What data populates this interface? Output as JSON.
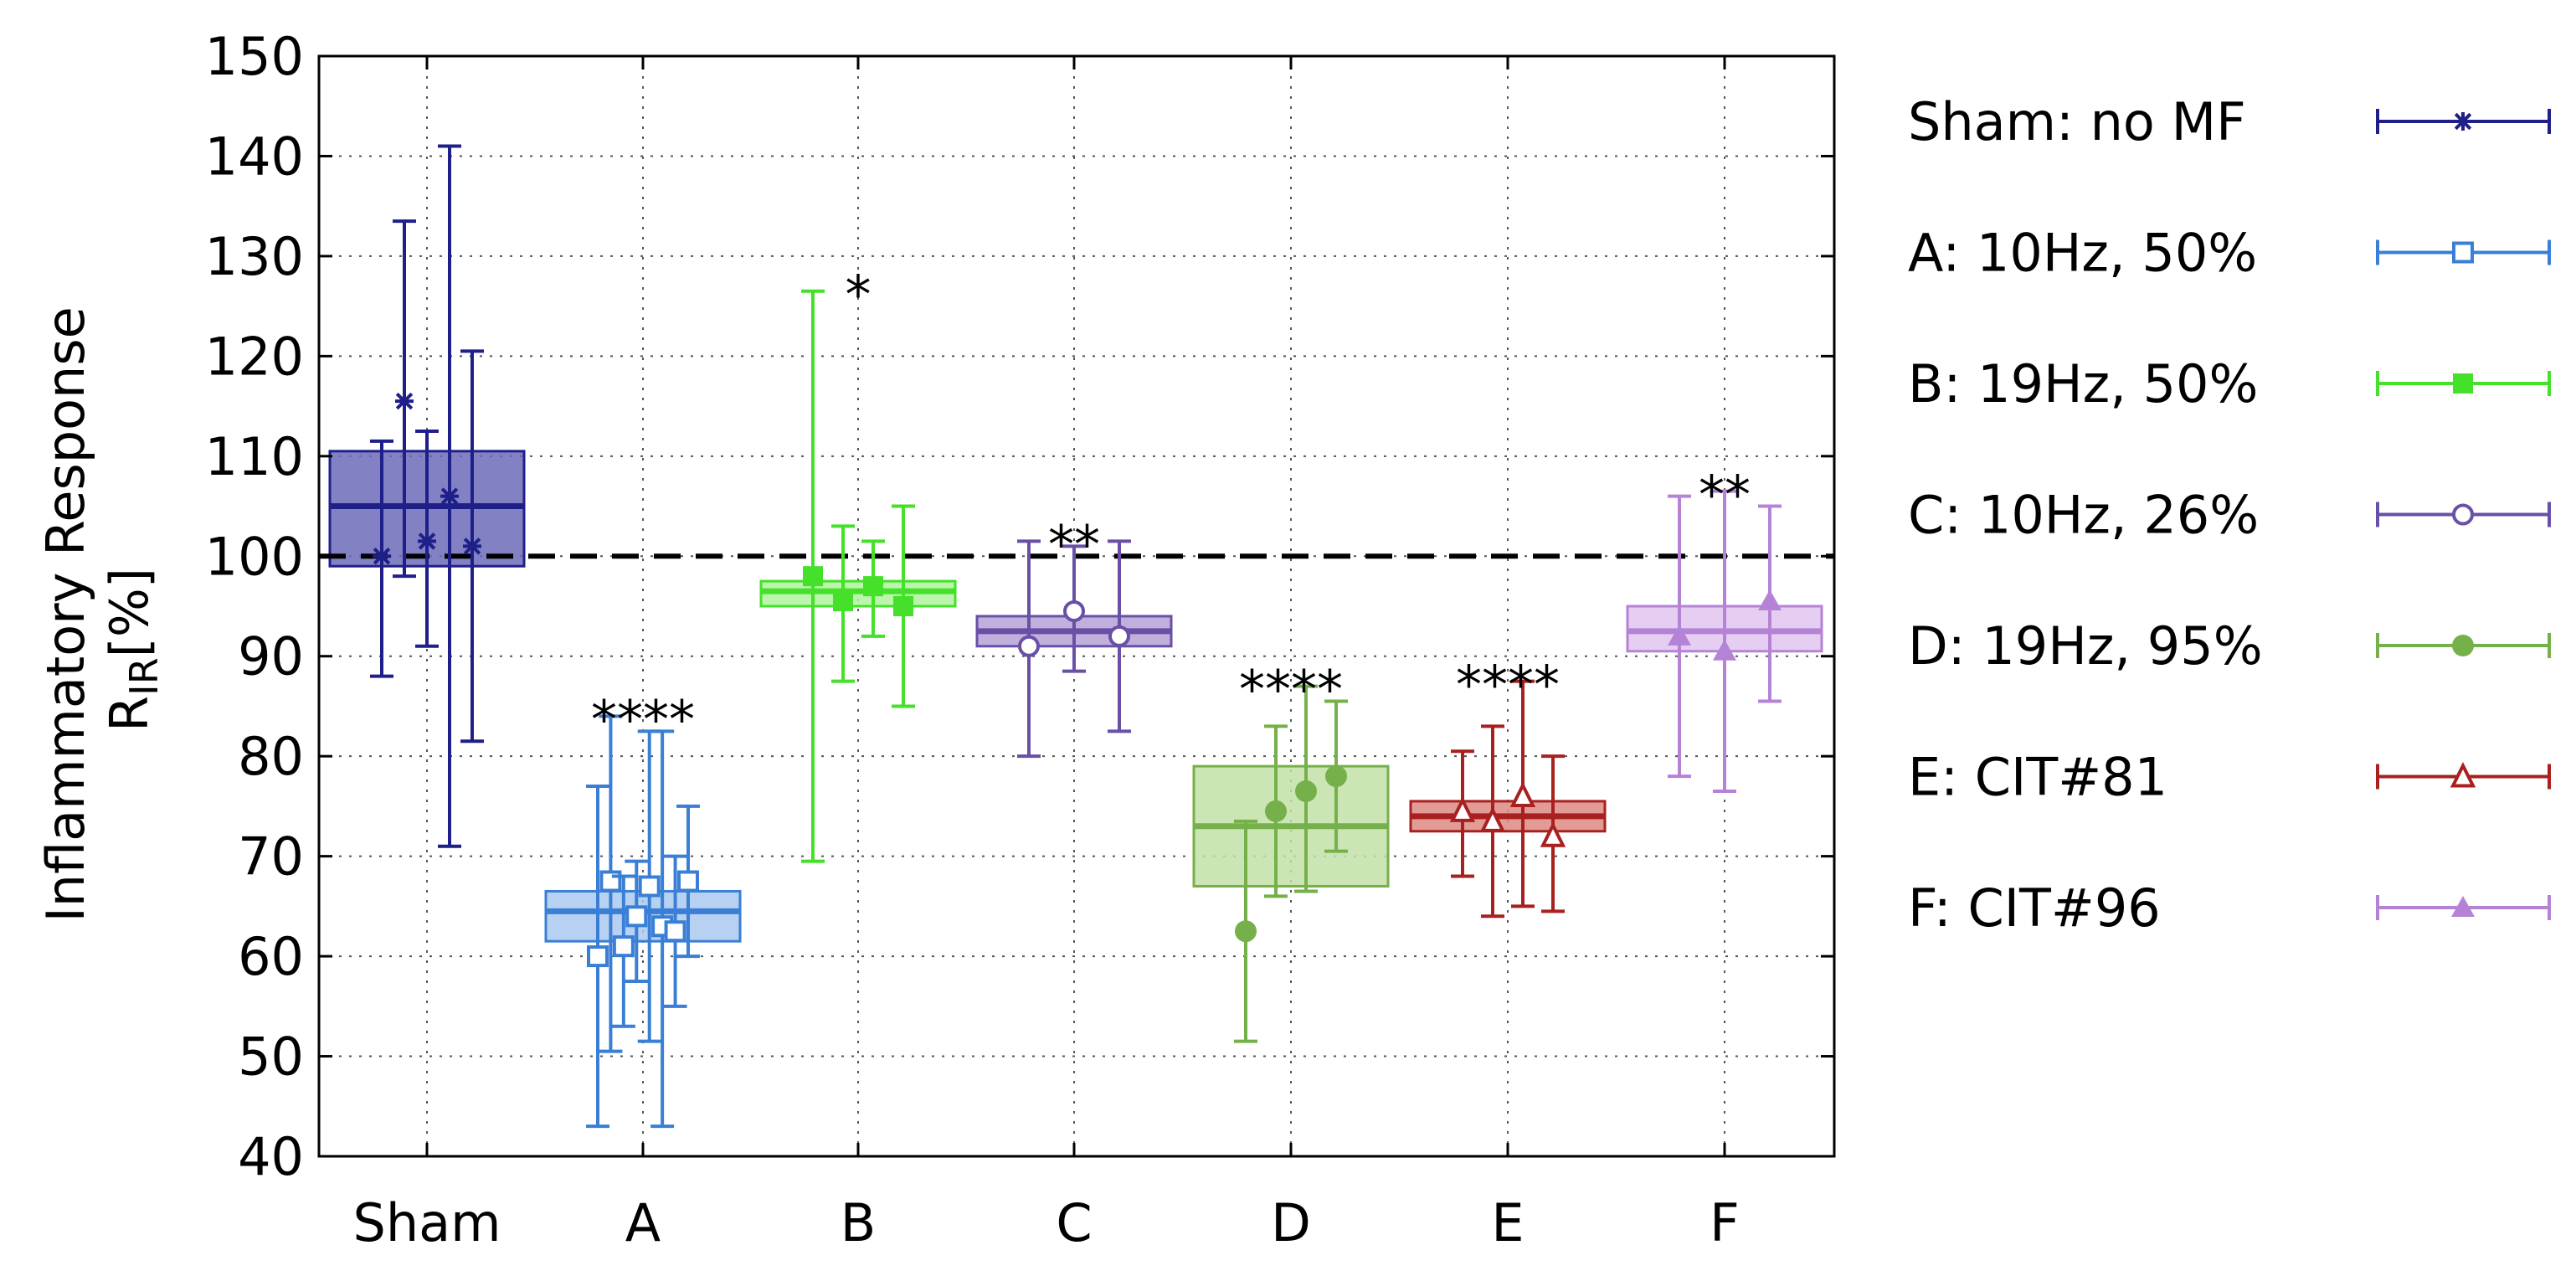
{
  "chart_data": {
    "type": "box",
    "title": "",
    "ylabel_main": "Inflammatory Response",
    "ylabel_symbol": "R",
    "ylabel_subscript": "IR",
    "ylabel_unit": "[%]",
    "xlabel": "",
    "ylim": [
      40,
      150
    ],
    "yticks": [
      40,
      50,
      60,
      70,
      80,
      90,
      100,
      110,
      120,
      130,
      140,
      150
    ],
    "reference_line": 100,
    "grid": true,
    "legend_position": "right",
    "categories": [
      "Sham",
      "A",
      "B",
      "C",
      "D",
      "E",
      "F"
    ],
    "groups": [
      {
        "name": "Sham: no MF",
        "category": "Sham",
        "color": "#1f1f8a",
        "fill": "#6b6bb8",
        "marker": "asterisk",
        "box": {
          "low": 99,
          "high": 110.5,
          "median": 105
        },
        "significance": "",
        "points": [
          {
            "value": 100,
            "err_low": 88,
            "err_high": 111.5
          },
          {
            "value": 115.5,
            "err_low": 98,
            "err_high": 133.5
          },
          {
            "value": 101.5,
            "err_low": 91,
            "err_high": 112.5
          },
          {
            "value": 106,
            "err_low": 71,
            "err_high": 141
          },
          {
            "value": 101,
            "err_low": 81.5,
            "err_high": 120.5
          }
        ]
      },
      {
        "name": "A: 10Hz, 50%",
        "category": "A",
        "color": "#3a7fd5",
        "fill": "#a9c9ef",
        "marker": "open-square",
        "box": {
          "low": 61.5,
          "high": 66.5,
          "median": 64.5
        },
        "significance": "****",
        "points": [
          {
            "value": 60,
            "err_low": 43,
            "err_high": 77
          },
          {
            "value": 67.5,
            "err_low": 50.5,
            "err_high": 84
          },
          {
            "value": 61,
            "err_low": 53,
            "err_high": 68
          },
          {
            "value": 64,
            "err_low": 57.5,
            "err_high": 69.5
          },
          {
            "value": 67,
            "err_low": 51.5,
            "err_high": 82.5
          },
          {
            "value": 63,
            "err_low": 43,
            "err_high": 82.5
          },
          {
            "value": 62.5,
            "err_low": 55,
            "err_high": 70
          },
          {
            "value": 67.5,
            "err_low": 60,
            "err_high": 75
          }
        ]
      },
      {
        "name": "B: 19Hz, 50%",
        "category": "B",
        "color": "#44e02a",
        "fill": "#b0f59e",
        "marker": "filled-square",
        "box": {
          "low": 95,
          "high": 97.5,
          "median": 96.5
        },
        "significance": "*",
        "points": [
          {
            "value": 98,
            "err_low": 69.5,
            "err_high": 126.5
          },
          {
            "value": 95.5,
            "err_low": 87.5,
            "err_high": 103
          },
          {
            "value": 97,
            "err_low": 92,
            "err_high": 101.5
          },
          {
            "value": 95,
            "err_low": 85,
            "err_high": 105
          }
        ]
      },
      {
        "name": "C: 10Hz, 26%",
        "category": "C",
        "color": "#6a4fa6",
        "fill": "#b4a3d6",
        "marker": "open-circle",
        "box": {
          "low": 91,
          "high": 94,
          "median": 92.5
        },
        "significance": "**",
        "points": [
          {
            "value": 91,
            "err_low": 80,
            "err_high": 101.5
          },
          {
            "value": 94.5,
            "err_low": 88.5,
            "err_high": 101
          },
          {
            "value": 92,
            "err_low": 82.5,
            "err_high": 101.5
          }
        ]
      },
      {
        "name": "D: 19Hz, 95%",
        "category": "D",
        "color": "#76b04a",
        "fill": "#c3e0a8",
        "marker": "filled-circle",
        "box": {
          "low": 67,
          "high": 79,
          "median": 73
        },
        "significance": "****",
        "points": [
          {
            "value": 62.5,
            "err_low": 51.5,
            "err_high": 73.5
          },
          {
            "value": 74.5,
            "err_low": 66,
            "err_high": 83
          },
          {
            "value": 76.5,
            "err_low": 66.5,
            "err_high": 87
          },
          {
            "value": 78,
            "err_low": 70.5,
            "err_high": 85.5
          }
        ]
      },
      {
        "name": "E: CIT#81",
        "category": "E",
        "color": "#a8201f",
        "fill": "#de8a84",
        "marker": "open-triangle",
        "box": {
          "low": 72.5,
          "high": 75.5,
          "median": 74
        },
        "significance": "****",
        "points": [
          {
            "value": 74.5,
            "err_low": 68,
            "err_high": 80.5
          },
          {
            "value": 73.5,
            "err_low": 64,
            "err_high": 83
          },
          {
            "value": 76,
            "err_low": 65,
            "err_high": 87.5
          },
          {
            "value": 72,
            "err_low": 64.5,
            "err_high": 80
          }
        ]
      },
      {
        "name": "F: CIT#96",
        "category": "F",
        "color": "#b583d6",
        "fill": "#e0c5ee",
        "marker": "filled-triangle",
        "box": {
          "low": 90.5,
          "high": 95,
          "median": 92.5
        },
        "significance": "**",
        "points": [
          {
            "value": 92,
            "err_low": 78,
            "err_high": 106
          },
          {
            "value": 90.5,
            "err_low": 76.5,
            "err_high": 106.5
          },
          {
            "value": 95.5,
            "err_low": 85.5,
            "err_high": 105
          }
        ]
      }
    ]
  }
}
